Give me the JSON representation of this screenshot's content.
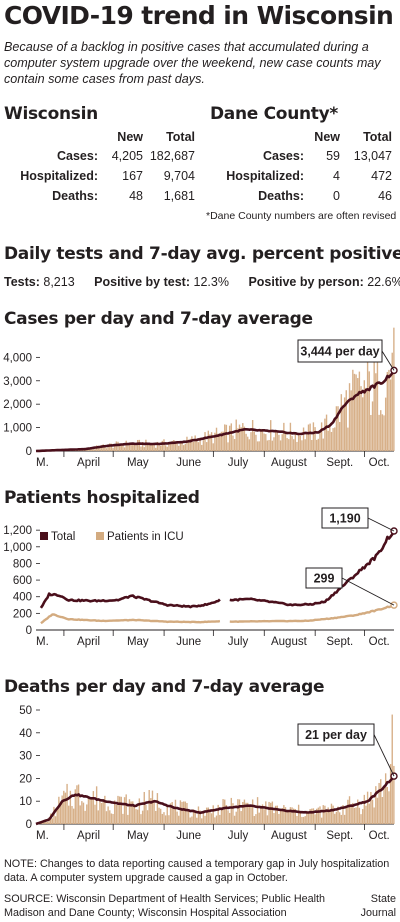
{
  "title": "COVID-19 trend in Wisconsin",
  "subtitle": "Because of a backlog in positive cases that accumulated during a computer system upgrade over the weekend, new case counts may contain some cases from past days.",
  "wisconsin": {
    "heading": "Wisconsin",
    "col_new": "New",
    "col_total": "Total",
    "rows": [
      {
        "label": "Cases:",
        "new": "4,205",
        "total": "182,687"
      },
      {
        "label": "Hospitalized:",
        "new": "167",
        "total": "9,704"
      },
      {
        "label": "Deaths:",
        "new": "48",
        "total": "1,681"
      }
    ]
  },
  "dane": {
    "heading": "Dane County*",
    "col_new": "New",
    "col_total": "Total",
    "rows": [
      {
        "label": "Cases:",
        "new": "59",
        "total": "13,047"
      },
      {
        "label": "Hospitalized:",
        "new": "4",
        "total": "472"
      },
      {
        "label": "Deaths:",
        "new": "0",
        "total": "46"
      }
    ],
    "note": "*Dane County numbers are often revised"
  },
  "tests": {
    "heading": "Daily tests and 7-day avg. percent positive",
    "tests_label": "Tests:",
    "tests_value": "8,213",
    "pbt_label": "Positive by test:",
    "pbt_value": "12.3%",
    "pbp_label": "Positive by person:",
    "pbp_value": "22.6%"
  },
  "colors": {
    "bar": "#d7b089",
    "line": "#4a0f1b",
    "icu": "#d3ab80",
    "text": "#231f20"
  },
  "months": [
    "M.",
    "April",
    "May",
    "June",
    "July",
    "August",
    "Sept.",
    "Oct."
  ],
  "chart_data": [
    {
      "type": "bar",
      "title": "Cases per day and 7-day average",
      "xlabel": "",
      "ylabel": "",
      "ylim": [
        0,
        4400
      ],
      "yticks": [
        0,
        1000,
        2000,
        3000,
        4000
      ],
      "ytick_labels": [
        "0",
        "1,000",
        "2,000",
        "3,000",
        "4,000"
      ],
      "grid": false,
      "x_range": "mid-March to mid-October (daily)",
      "avg_keypoints": [
        {
          "day": 0,
          "value": 0
        },
        {
          "day": 14,
          "value": 40
        },
        {
          "day": 30,
          "value": 80
        },
        {
          "day": 44,
          "value": 230
        },
        {
          "day": 58,
          "value": 310
        },
        {
          "day": 75,
          "value": 300
        },
        {
          "day": 92,
          "value": 400
        },
        {
          "day": 110,
          "value": 650
        },
        {
          "day": 127,
          "value": 920
        },
        {
          "day": 145,
          "value": 840
        },
        {
          "day": 160,
          "value": 730
        },
        {
          "day": 172,
          "value": 800
        },
        {
          "day": 180,
          "value": 1150
        },
        {
          "day": 187,
          "value": 1900
        },
        {
          "day": 195,
          "value": 2400
        },
        {
          "day": 204,
          "value": 2700
        },
        {
          "day": 212,
          "value": 3000
        },
        {
          "day": 218,
          "value": 3444
        }
      ],
      "bar_peak": 4200,
      "annotation": "3,444 per day",
      "annotation_value": 3444
    },
    {
      "type": "line",
      "title": "Patients hospitalized",
      "ylim": [
        0,
        1250
      ],
      "yticks": [
        0,
        200,
        400,
        600,
        800,
        1000,
        1200
      ],
      "ytick_labels": [
        "0",
        "200",
        "400",
        "600",
        "800",
        "1,000",
        "1,200"
      ],
      "grid": false,
      "series": [
        {
          "name": "Total",
          "keypoints": [
            {
              "day": 3,
              "value": 260
            },
            {
              "day": 8,
              "value": 430
            },
            {
              "day": 14,
              "value": 420
            },
            {
              "day": 20,
              "value": 360
            },
            {
              "day": 35,
              "value": 350
            },
            {
              "day": 50,
              "value": 360
            },
            {
              "day": 58,
              "value": 410
            },
            {
              "day": 66,
              "value": 370
            },
            {
              "day": 80,
              "value": 300
            },
            {
              "day": 95,
              "value": 280
            },
            {
              "day": 105,
              "value": 310
            },
            {
              "day": 112,
              "value": 360
            }
          ],
          "keypoints_after_gap": [
            {
              "day": 118,
              "value": 360
            },
            {
              "day": 130,
              "value": 370
            },
            {
              "day": 142,
              "value": 340
            },
            {
              "day": 156,
              "value": 300
            },
            {
              "day": 168,
              "value": 310
            },
            {
              "day": 176,
              "value": 340
            },
            {
              "day": 184,
              "value": 480
            },
            {
              "day": 192,
              "value": 620
            },
            {
              "day": 200,
              "value": 760
            },
            {
              "day": 208,
              "value": 900
            },
            {
              "day": 214,
              "value": 1100
            },
            {
              "day": 218,
              "value": 1190
            }
          ]
        },
        {
          "name": "Patients in ICU",
          "keypoints": [
            {
              "day": 3,
              "value": 80
            },
            {
              "day": 10,
              "value": 190
            },
            {
              "day": 20,
              "value": 130
            },
            {
              "day": 40,
              "value": 110
            },
            {
              "day": 60,
              "value": 120
            },
            {
              "day": 80,
              "value": 100
            },
            {
              "day": 100,
              "value": 95
            },
            {
              "day": 112,
              "value": 105
            }
          ],
          "keypoints_after_gap": [
            {
              "day": 118,
              "value": 100
            },
            {
              "day": 140,
              "value": 105
            },
            {
              "day": 165,
              "value": 110
            },
            {
              "day": 180,
              "value": 140
            },
            {
              "day": 195,
              "value": 180
            },
            {
              "day": 208,
              "value": 240
            },
            {
              "day": 218,
              "value": 299
            }
          ]
        }
      ],
      "legend": [
        "Total",
        "Patients in ICU"
      ],
      "legend_position": "top-left",
      "annotations": [
        {
          "text": "1,190",
          "value": 1190
        },
        {
          "text": "299",
          "value": 299
        }
      ]
    },
    {
      "type": "bar",
      "title": "Deaths per day and 7-day average",
      "ylim": [
        0,
        50
      ],
      "yticks": [
        0,
        10,
        20,
        30,
        40,
        50
      ],
      "ytick_labels": [
        "0",
        "10",
        "20",
        "30",
        "40",
        "50"
      ],
      "grid": false,
      "avg_keypoints": [
        {
          "day": 0,
          "value": 0
        },
        {
          "day": 8,
          "value": 2
        },
        {
          "day": 16,
          "value": 10
        },
        {
          "day": 24,
          "value": 13
        },
        {
          "day": 36,
          "value": 11
        },
        {
          "day": 50,
          "value": 9
        },
        {
          "day": 60,
          "value": 8
        },
        {
          "day": 72,
          "value": 10
        },
        {
          "day": 85,
          "value": 7
        },
        {
          "day": 100,
          "value": 5
        },
        {
          "day": 115,
          "value": 7
        },
        {
          "day": 130,
          "value": 8
        },
        {
          "day": 150,
          "value": 6
        },
        {
          "day": 165,
          "value": 5
        },
        {
          "day": 180,
          "value": 6
        },
        {
          "day": 192,
          "value": 8
        },
        {
          "day": 202,
          "value": 10
        },
        {
          "day": 210,
          "value": 15
        },
        {
          "day": 218,
          "value": 21
        }
      ],
      "bar_peak": 48,
      "annotation": "21 per day",
      "annotation_value": 21
    }
  ],
  "footnote": "NOTE: Changes to data reporting caused a temporary gap in July hospitalization data. A computer system upgrade caused a gap in October.",
  "source": "SOURCE: Wisconsin Department of Health Services; Public Health Madison and Dane County; Wisconsin Hospital Association",
  "credit_line1": "State",
  "credit_line2": "Journal"
}
